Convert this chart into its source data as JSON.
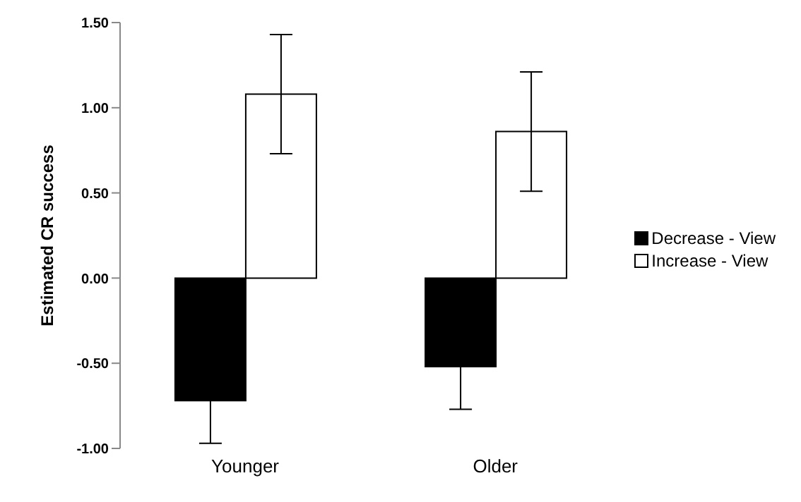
{
  "chart_data": {
    "type": "bar",
    "ylabel": "Estimated CR success",
    "categories": [
      "Younger",
      "Older"
    ],
    "series": [
      {
        "name": "Decrease - View",
        "color": "#000000",
        "values": [
          -0.72,
          -0.52
        ],
        "errors": [
          0.25,
          0.25
        ]
      },
      {
        "name": "Increase - View",
        "color": "#ffffff",
        "values": [
          1.08,
          0.86
        ],
        "errors": [
          0.35,
          0.35
        ]
      }
    ],
    "ylim": [
      -1,
      1.5
    ],
    "yticks": [
      {
        "value": -1,
        "label": "-1.00"
      },
      {
        "value": -0.5,
        "label": "-0.50"
      },
      {
        "value": 0,
        "label": "0.00"
      },
      {
        "value": 0.5,
        "label": "0.50"
      },
      {
        "value": 1,
        "label": "1.00"
      },
      {
        "value": 1.5,
        "label": "1.50"
      }
    ],
    "legend": "right"
  }
}
